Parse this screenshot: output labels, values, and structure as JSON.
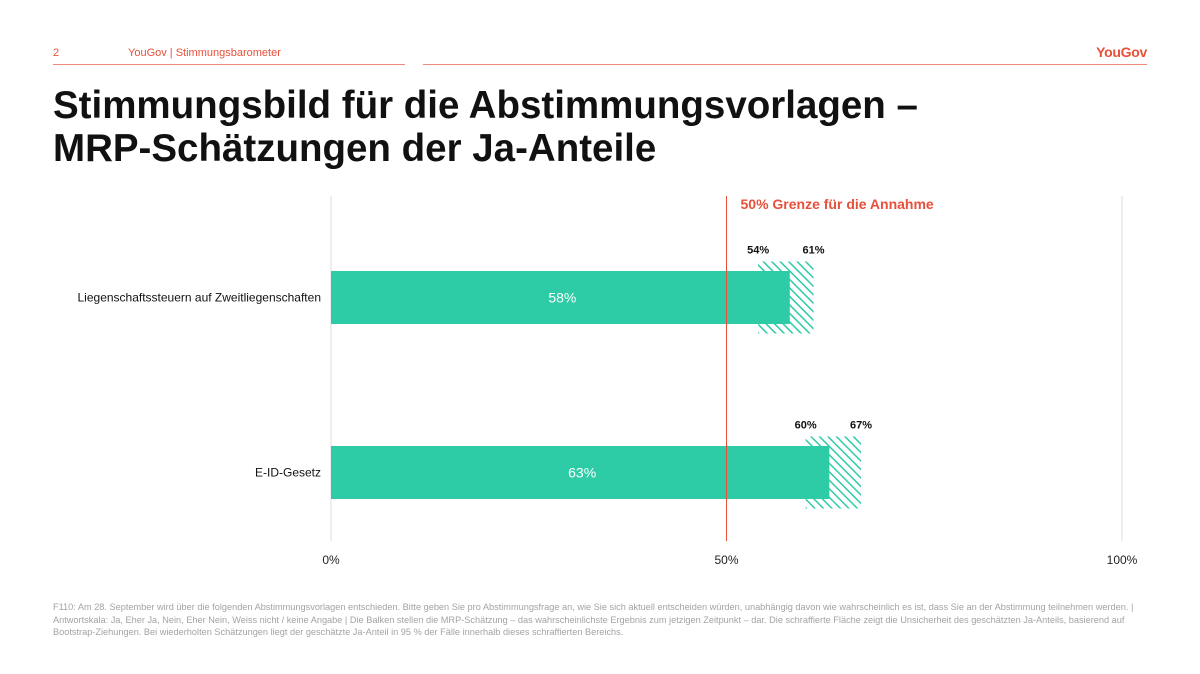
{
  "header": {
    "page_number": "2",
    "section": "YouGov | Stimmungsbarometer",
    "logo": "YouGov",
    "accent_color": "#e8503a"
  },
  "title": {
    "line1": "Stimmungsbild für die Abstimmungsvorlagen –",
    "line2": "MRP-Schätzungen der Ja-Anteile"
  },
  "chart_data": {
    "type": "bar",
    "orientation": "horizontal",
    "categories": [
      "Liegenschaftssteuern auf Zweitliegenschaften",
      "E-ID-Gesetz"
    ],
    "values": [
      58,
      63
    ],
    "value_labels": [
      "58%",
      "63%"
    ],
    "intervals": [
      {
        "low": 54,
        "high": 61,
        "low_label": "54%",
        "high_label": "61%"
      },
      {
        "low": 60,
        "high": 67,
        "low_label": "60%",
        "high_label": "67%"
      }
    ],
    "reference_line": {
      "value": 50,
      "label": "50% Grenze für die Annahme",
      "color": "#e8503a"
    },
    "xlim": [
      0,
      100
    ],
    "x_ticks": [
      0,
      50,
      100
    ],
    "x_tick_labels": [
      "0%",
      "50%",
      "100%"
    ],
    "bar_color": "#2ecba7",
    "grid": false
  },
  "footnote": "F110: Am 28. September wird über die folgenden Abstimmungsvorlagen entschieden. Bitte geben Sie pro Abstimmungsfrage an, wie Sie sich aktuell entscheiden würden, unabhängig davon wie wahrscheinlich es ist, dass Sie an der Abstimmung teilnehmen werden. | Antwortskala: Ja, Eher Ja, Nein, Eher Nein, Weiss nicht / keine Angabe | Die Balken stellen die MRP-Schätzung – das wahrscheinlichste Ergebnis zum jetzigen Zeitpunkt – dar. Die schraffierte Fläche zeigt die Unsicherheit des geschätzten Ja-Anteils, basierend auf Bootstrap-Ziehungen. Bei wiederholten Schätzungen liegt der geschätzte Ja-Anteil in 95 % der Fälle innerhalb dieses schraffierten Bereichs."
}
